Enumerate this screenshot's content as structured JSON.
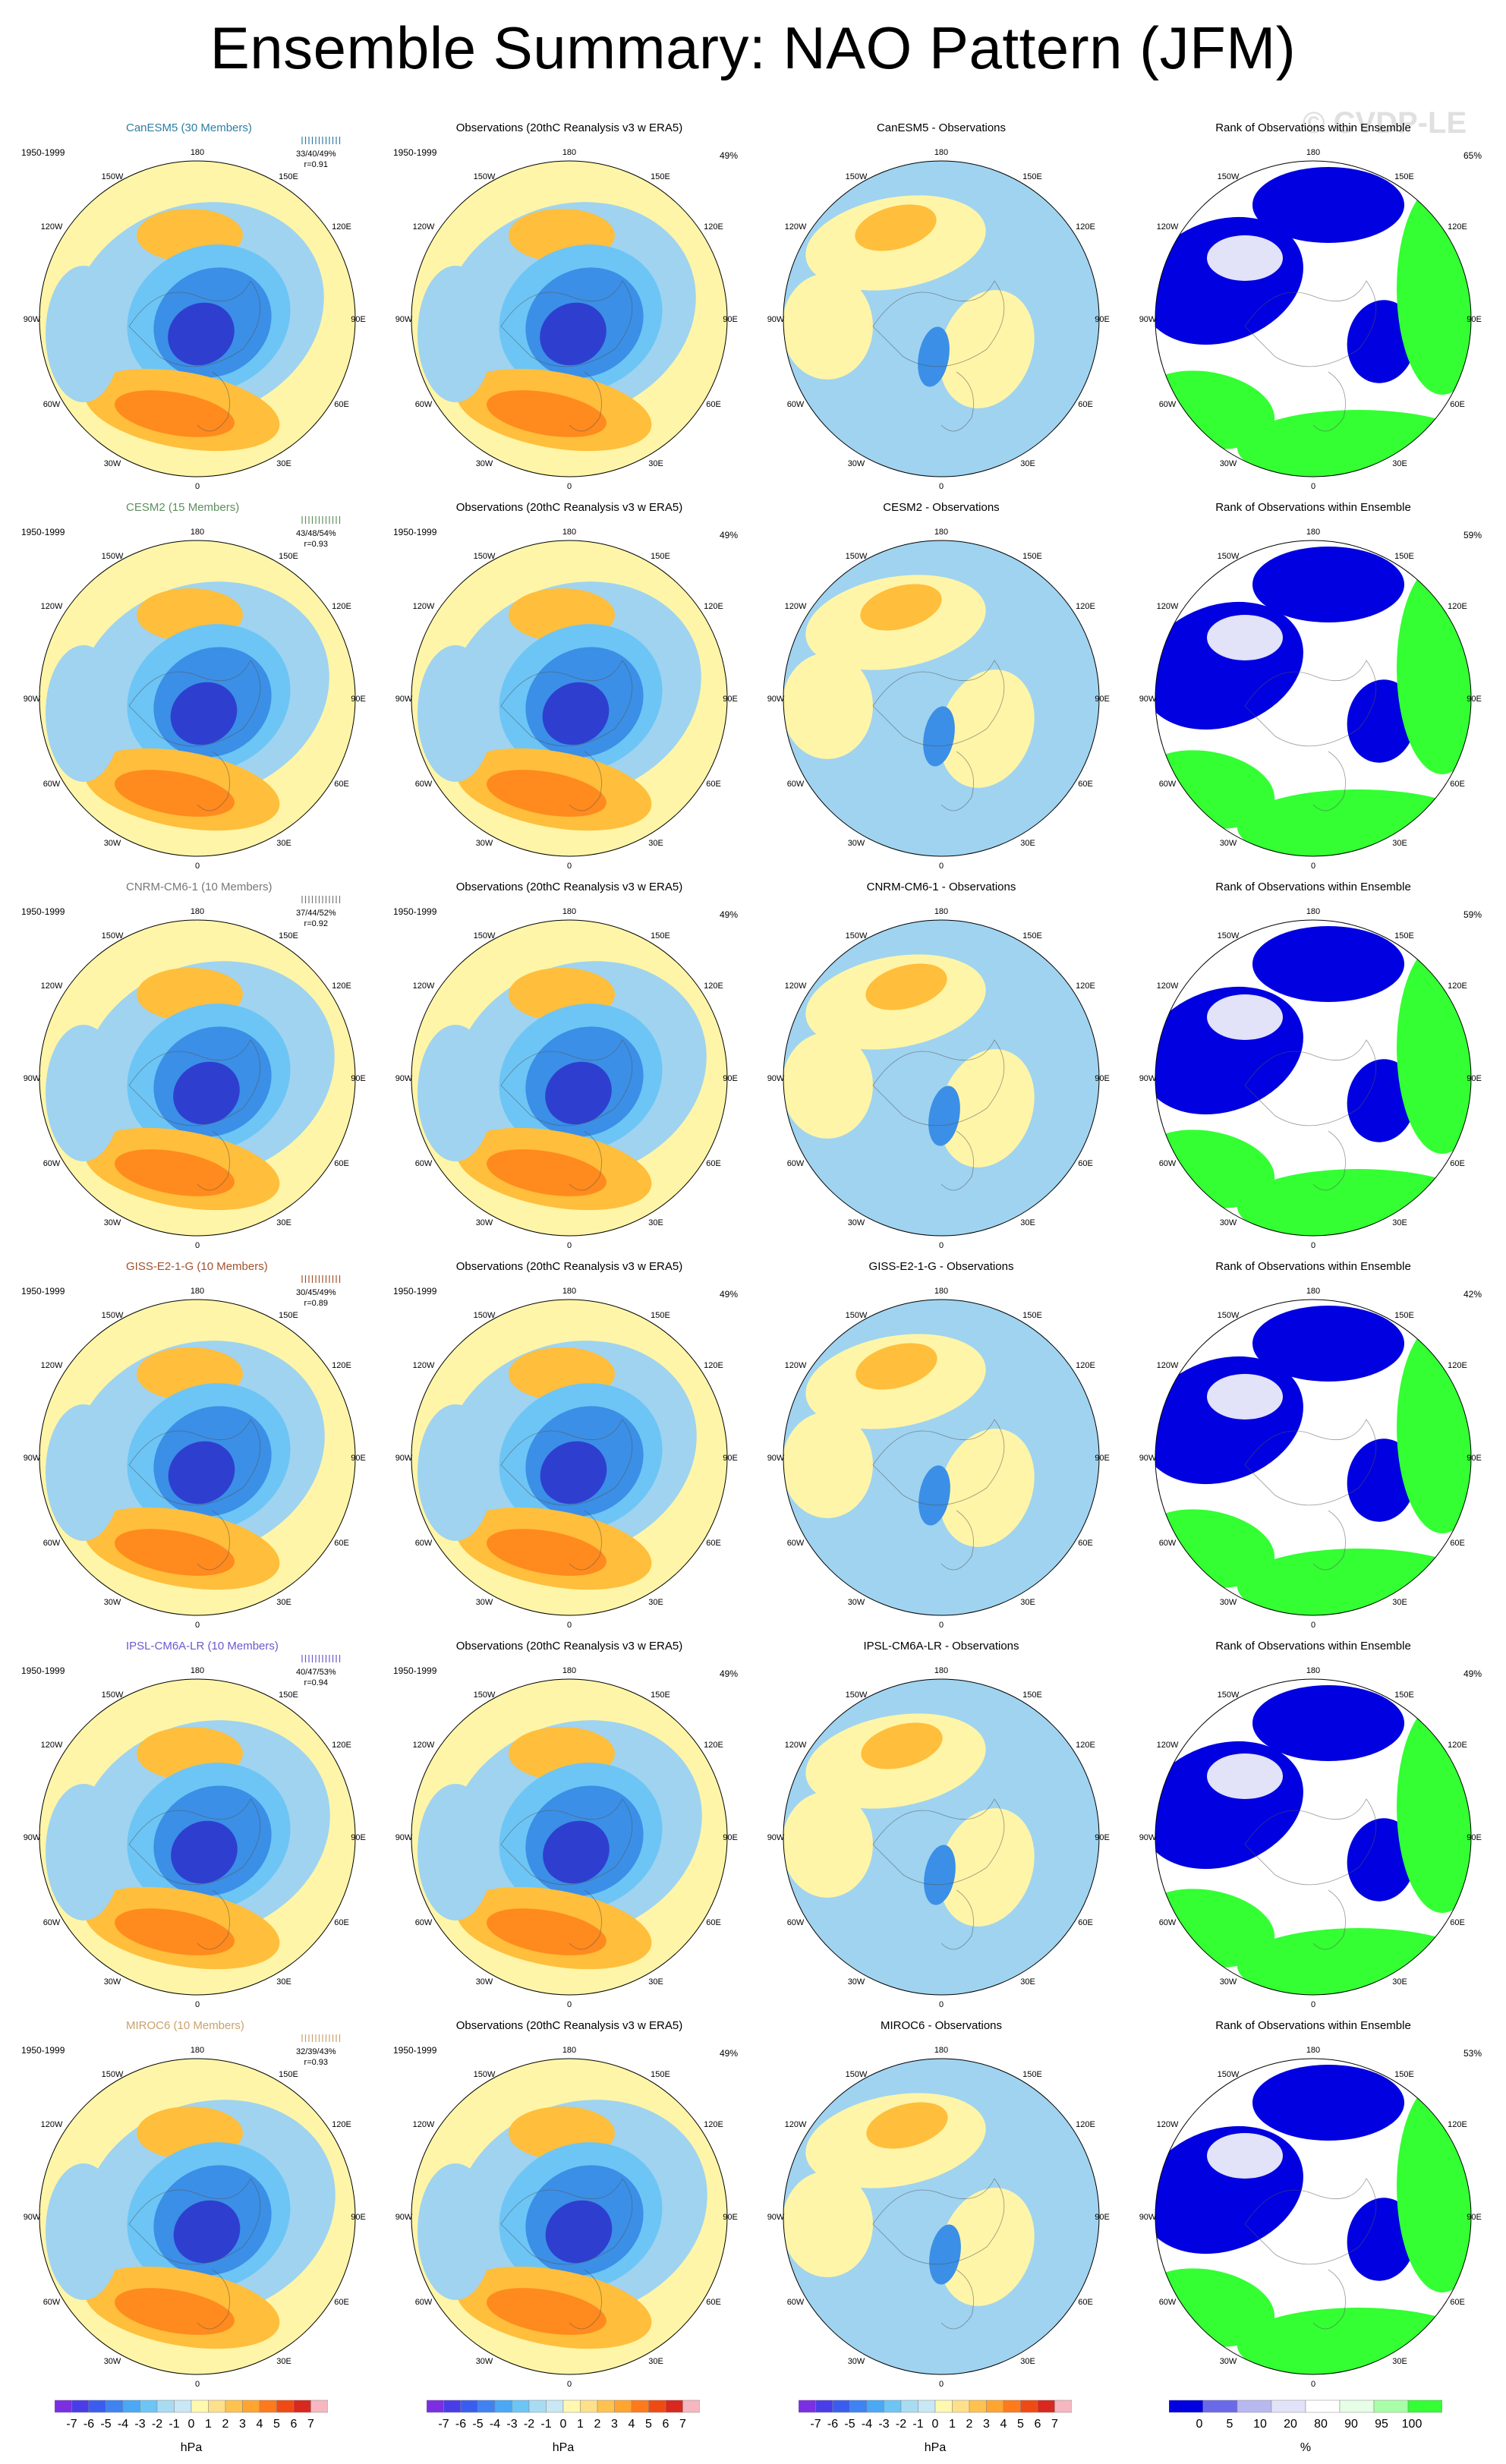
{
  "title": "Ensemble Summary: NAO Pattern (JFM)",
  "watermark": "© CVDP-LE",
  "rows": [
    {
      "model": "CanESM5 (30 Members)",
      "model_color": "#2e7ea3",
      "stats_line1": "33/40/49%",
      "stats_line2": "r=0.91",
      "diff_title": "CanESM5 - Observations",
      "rank_pct": "65%"
    },
    {
      "model": "CESM2 (15 Members)",
      "model_color": "#5e8f5e",
      "stats_line1": "43/48/54%",
      "stats_line2": "r=0.93",
      "diff_title": "CESM2 - Observations",
      "rank_pct": "59%"
    },
    {
      "model": "CNRM-CM6-1 (10 Members)",
      "model_color": "#777777",
      "stats_line1": "37/44/52%",
      "stats_line2": "r=0.92",
      "diff_title": "CNRM-CM6-1 - Observations",
      "rank_pct": "59%"
    },
    {
      "model": "GISS-E2-1-G (10 Members)",
      "model_color": "#a0522d",
      "stats_line1": "30/45/49%",
      "stats_line2": "r=0.89",
      "diff_title": "GISS-E2-1-G - Observations",
      "rank_pct": "42%"
    },
    {
      "model": "IPSL-CM6A-LR (10 Members)",
      "model_color": "#6a5acd",
      "stats_line1": "40/47/53%",
      "stats_line2": "r=0.94",
      "diff_title": "IPSL-CM6A-LR - Observations",
      "rank_pct": "49%"
    },
    {
      "model": "MIROC6 (10 Members)",
      "model_color": "#c9a26b",
      "stats_line1": "32/39/43%",
      "stats_line2": "r=0.93",
      "diff_title": "MIROC6 - Observations",
      "rank_pct": "53%"
    }
  ],
  "period": "1950-1999",
  "obs_title": "Observations (20thC Reanalysis v3 w ERA5)",
  "obs_pct": "49%",
  "rank_title": "Rank of Observations within Ensemble",
  "lon_labels": {
    "top": "180",
    "ul": "150W",
    "ur": "150E",
    "l1": "120W",
    "r1": "120E",
    "l2": "90W",
    "r2": "90E",
    "l3": "60W",
    "r3": "60E",
    "ll": "30W",
    "lr": "30E",
    "bottom": "0"
  },
  "colorbar_hpa": {
    "labels": [
      "-7",
      "-6",
      "-5",
      "-4",
      "-3",
      "-2",
      "-1",
      "0",
      "1",
      "2",
      "3",
      "4",
      "5",
      "6",
      "7"
    ],
    "colors": [
      "#7b2fe0",
      "#4a3de8",
      "#3a5df0",
      "#3f82f2",
      "#4aa8f5",
      "#6cc5f5",
      "#a8dcf3",
      "#c8e8f5",
      "#fff9b0",
      "#ffe08a",
      "#ffc24f",
      "#ffa42e",
      "#ff7a1a",
      "#f04a14",
      "#d9281f",
      "#f7b7c0"
    ],
    "unit": "hPa"
  },
  "colorbar_rank": {
    "labels": [
      "0",
      "5",
      "10",
      "20",
      "80",
      "90",
      "95",
      "100"
    ],
    "colors": [
      "#0000e0",
      "#6a6ae8",
      "#b8b8f0",
      "#e2e2f8",
      "#ffffff",
      "#e6ffe6",
      "#a8ffa8",
      "#33ff33"
    ],
    "unit": "%"
  },
  "palette": {
    "blue_deep": "#2e3fcf",
    "blue_mid": "#3b8fe6",
    "blue_light": "#9fd3f0",
    "yellow": "#fff5a8",
    "orange": "#ffbe3b",
    "orange_deep": "#ff8a1e",
    "rank_blue": "#0000e0",
    "rank_green": "#33ff33"
  }
}
